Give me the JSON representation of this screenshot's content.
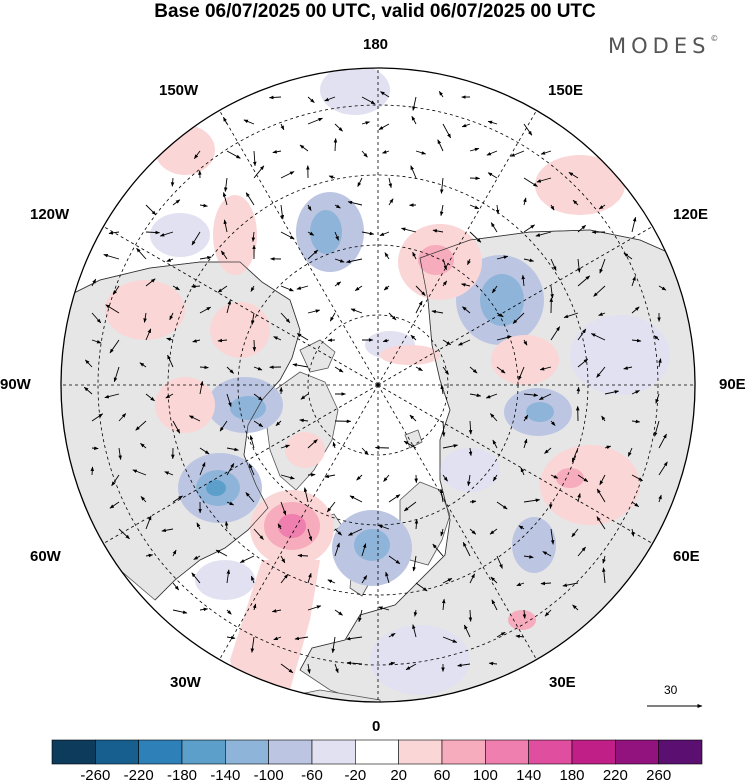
{
  "title": "Base 06/07/2025 00 UTC, valid 06/07/2025 00 UTC",
  "brand": "MODES",
  "brand_mark": "©",
  "longitude_labels": {
    "n180": "180",
    "w150": "150W",
    "e150": "150E",
    "w120": "120W",
    "e120": "120E",
    "w90": "90W",
    "e90": "90E",
    "w60": "60W",
    "e60": "60E",
    "w30": "30W",
    "e30": "30E",
    "s0": "0"
  },
  "wind_scale_label": "30",
  "colorbar": {
    "colors": [
      "#0c3b5c",
      "#175f8e",
      "#2e80b9",
      "#5c9fcb",
      "#8fb4d9",
      "#bcc6e3",
      "#e1e1f1",
      "#ffffff",
      "#fbd6d6",
      "#f6acbc",
      "#ef7fae",
      "#e04f9f",
      "#c11f88",
      "#92127e",
      "#5b0f70"
    ],
    "labels": [
      "-260",
      "-220",
      "-180",
      "-140",
      "-100",
      "-60",
      "-20",
      "20",
      "60",
      "100",
      "140",
      "180",
      "220",
      "260"
    ]
  },
  "colors": {
    "land": "#e6e6e6",
    "ocean": "#ffffff",
    "coast": "#444444",
    "grid": "#000000"
  }
}
